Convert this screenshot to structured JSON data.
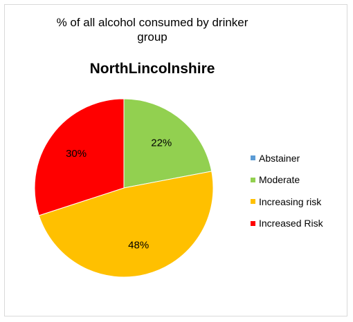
{
  "chart_data": {
    "type": "pie",
    "title": "% of all alcohol consumed  by drinker group",
    "subtitle": "NorthLincolnshire",
    "legend_position": "right",
    "slices": [
      {
        "name": "Abstainer",
        "value": 0,
        "label": "",
        "color": "#5b9bd5"
      },
      {
        "name": "Moderate",
        "value": 22,
        "label": "22%",
        "color": "#92d050"
      },
      {
        "name": "Increasing risk",
        "value": 48,
        "label": "48%",
        "color": "#ffc000"
      },
      {
        "name": "Increased Risk",
        "value": 30,
        "label": "30%",
        "color": "#ff0000"
      }
    ]
  }
}
